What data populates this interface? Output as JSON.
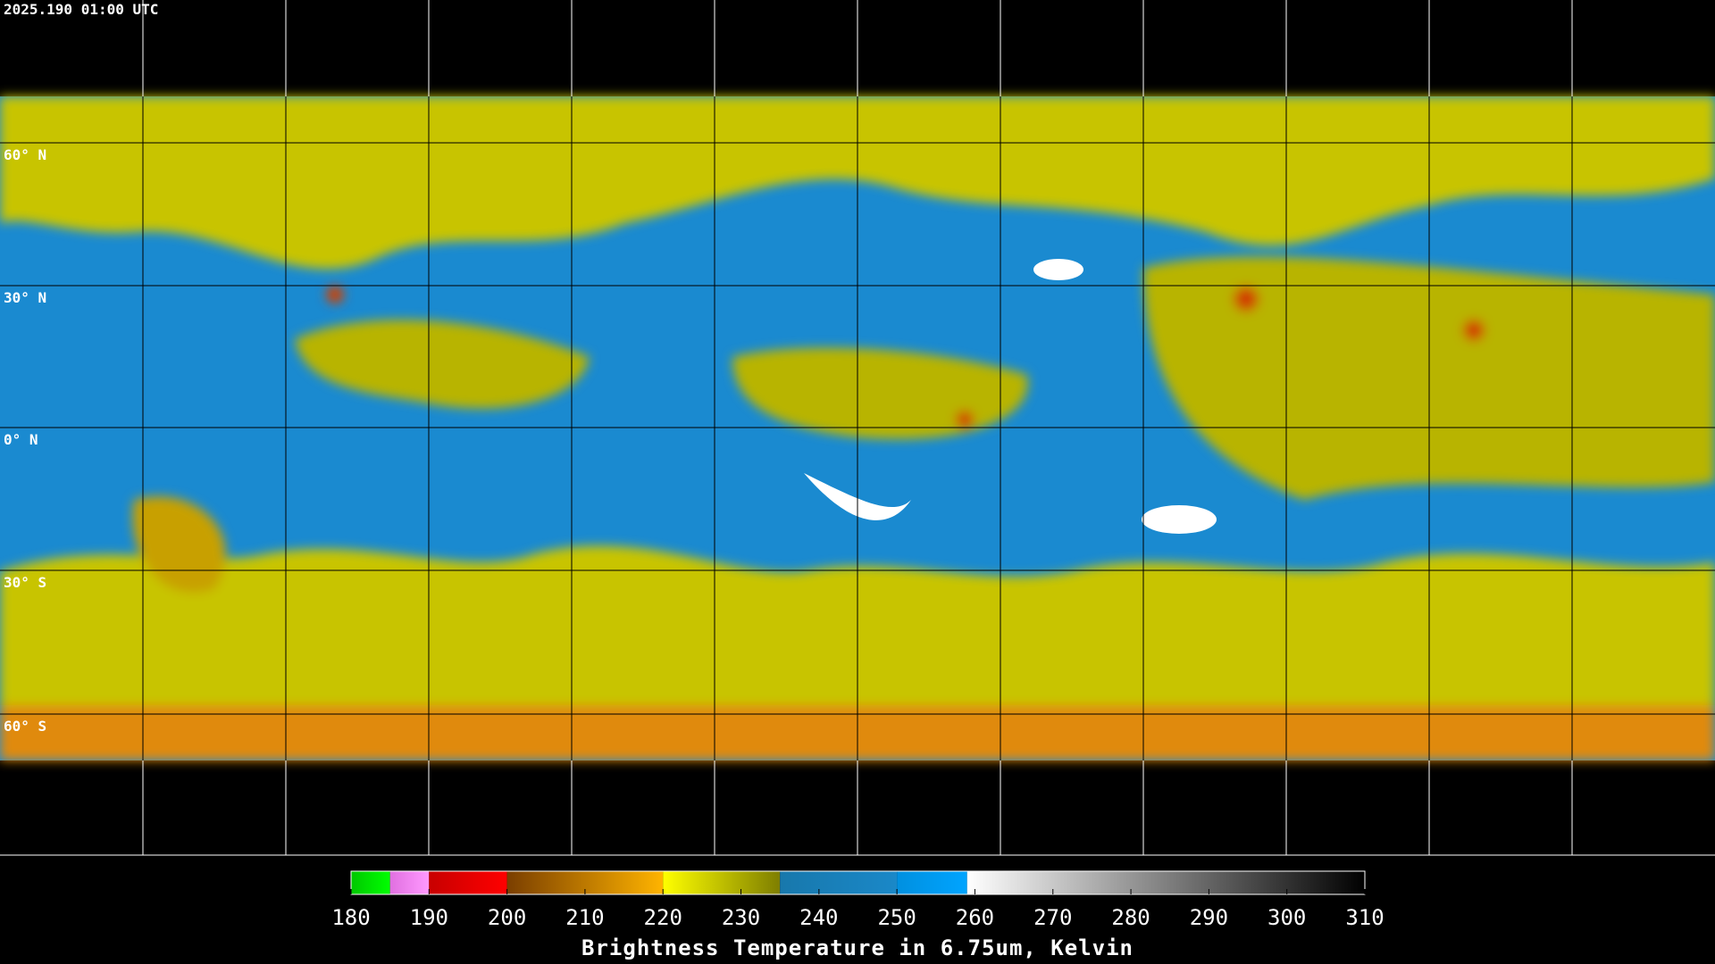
{
  "header": {
    "timestamp": "2025.190 01:00 UTC"
  },
  "map": {
    "latitude_labels": [
      "60° N",
      "30° N",
      "0° N",
      "30° S",
      "60° S"
    ]
  },
  "colorbar": {
    "title": "Brightness Temperature in 6.75um, Kelvin",
    "lim": [
      180,
      310
    ],
    "ticks": [
      180,
      190,
      200,
      210,
      220,
      230,
      240,
      250,
      260,
      270,
      280,
      290,
      300,
      310
    ],
    "segments": [
      {
        "from": 180,
        "to": 185,
        "colors": [
          "#00c800",
          "#00ff00"
        ]
      },
      {
        "from": 185,
        "to": 190,
        "colors": [
          "#e070e0",
          "#ff99ff"
        ]
      },
      {
        "from": 190,
        "to": 200,
        "colors": [
          "#c80000",
          "#ff0000"
        ]
      },
      {
        "from": 200,
        "to": 220,
        "colors": [
          "#7a3e00",
          "#ffb400"
        ]
      },
      {
        "from": 220,
        "to": 235,
        "colors": [
          "#ffff00",
          "#7e7e00"
        ]
      },
      {
        "from": 235,
        "to": 250,
        "colors": [
          "#1878ac",
          "#1a88c8"
        ]
      },
      {
        "from": 250,
        "to": 259,
        "colors": [
          "#0090e0",
          "#00a4ff"
        ]
      },
      {
        "from": 259,
        "to": 310,
        "colors": [
          "#ffffff",
          "#000000"
        ]
      }
    ]
  }
}
